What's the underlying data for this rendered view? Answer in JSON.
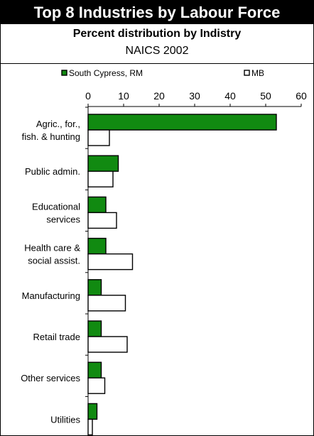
{
  "header": {
    "title": "Top 8 Industries by Labour Force",
    "subtitle": "Percent distribution by Indistry",
    "subsubtitle": "NAICS 2002"
  },
  "colors": {
    "series_primary": "#118a11",
    "series_secondary": "#ffffff",
    "outline": "#000000",
    "title_background": "#000000"
  },
  "chart_data": {
    "type": "bar",
    "orientation": "horizontal",
    "title": "Top 8 Industries by Labour Force",
    "subtitle": "Percent distribution by Indistry",
    "note": "NAICS 2002",
    "categories": [
      "Agric., for., fish. & hunting",
      "Public admin.",
      "Educational services",
      "Health care & social assist.",
      "Manufacturing",
      "Retail trade",
      "Other services",
      "Utilities"
    ],
    "category_lines": [
      [
        "Agric., for.,",
        "fish. & hunting"
      ],
      [
        "Public admin."
      ],
      [
        "Educational",
        "services"
      ],
      [
        "Health care &",
        "social assist."
      ],
      [
        "Manufacturing"
      ],
      [
        "Retail trade"
      ],
      [
        "Other services"
      ],
      [
        "Utilities"
      ]
    ],
    "series": [
      {
        "name": "South Cypress, RM",
        "values": [
          53,
          8.5,
          5,
          5,
          3.7,
          3.7,
          3.7,
          2.5
        ]
      },
      {
        "name": "MB",
        "values": [
          6,
          7,
          8,
          12.5,
          10.5,
          11,
          4.7,
          1.2
        ]
      }
    ],
    "xlim": [
      0,
      60
    ],
    "xticks": [
      0,
      10,
      20,
      30,
      40,
      50,
      60
    ],
    "legend_position": "top",
    "grid": false
  }
}
